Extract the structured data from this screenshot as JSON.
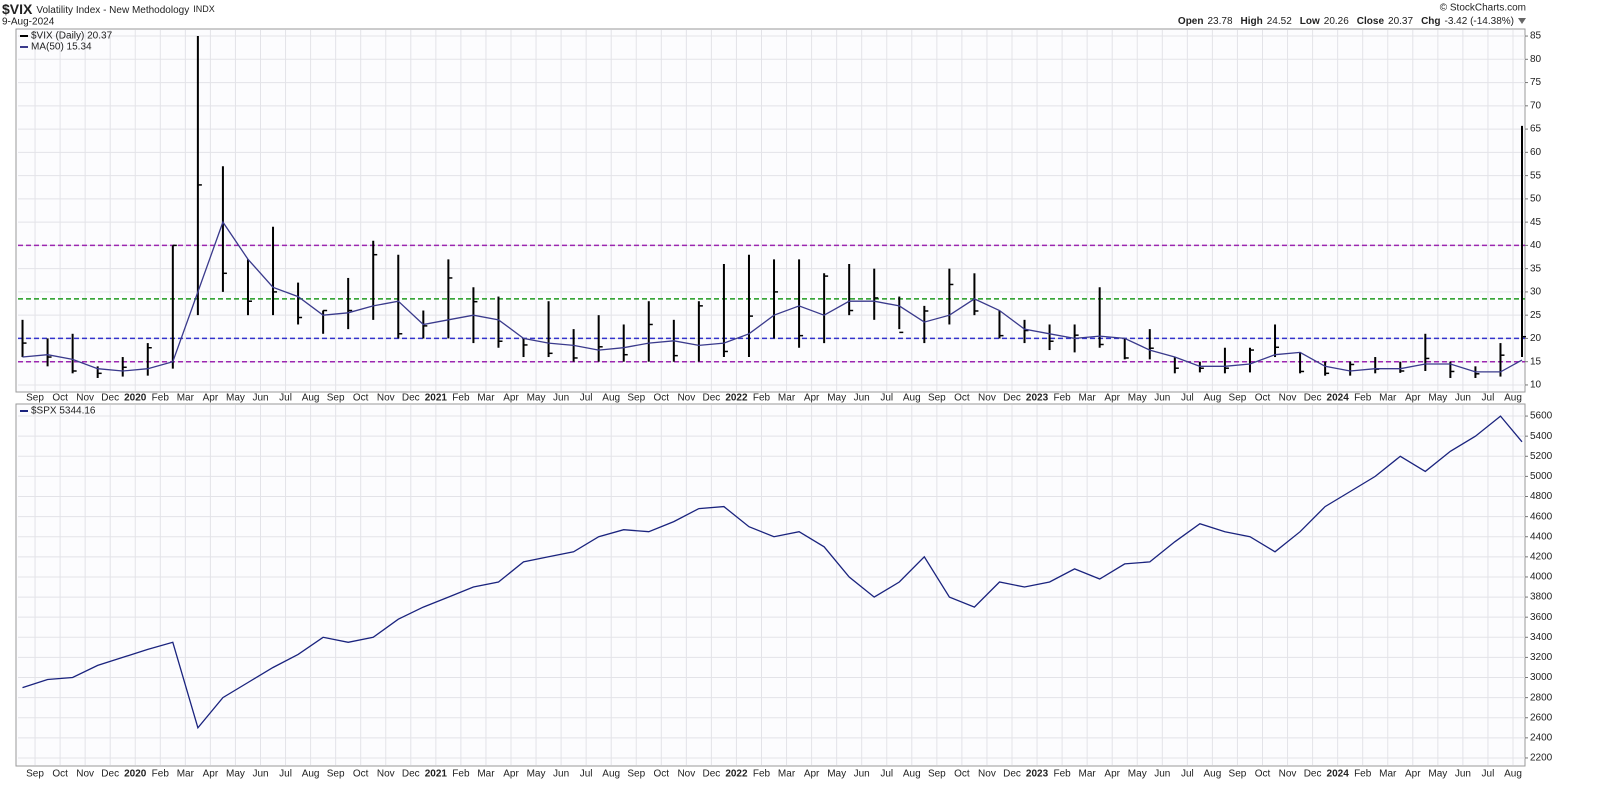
{
  "header": {
    "symbol": "$VIX",
    "name": "Volatility Index - New Methodology",
    "exchange": "INDX",
    "date": "9-Aug-2024",
    "credit": "© StockCharts.com",
    "quote": [
      {
        "label": "Open",
        "value": 23.78
      },
      {
        "label": "High",
        "value": 24.52
      },
      {
        "label": "Low",
        "value": 20.26
      },
      {
        "label": "Close",
        "value": 20.37
      },
      {
        "label": "Chg",
        "value": "-3.42 (-14.38%)"
      }
    ]
  },
  "chart_data": [
    {
      "type": "hlc",
      "categories": [
        null,
        "Sep",
        "Oct",
        "Nov",
        "Dec",
        "2020",
        "Feb",
        "Mar",
        "Apr",
        "May",
        "Jun",
        "Jul",
        "Aug",
        "Sep",
        "Oct",
        "Nov",
        "Dec",
        "2021",
        "Feb",
        "Mar",
        "Apr",
        "May",
        "Jun",
        "Jul",
        "Aug",
        "Sep",
        "Oct",
        "Nov",
        "Dec",
        "2022",
        "Feb",
        "Mar",
        "Apr",
        "May",
        "Jun",
        "Jul",
        "Aug",
        "Sep",
        "Oct",
        "Nov",
        "Dec",
        "2023",
        "Feb",
        "Mar",
        "Apr",
        "May",
        "Jun",
        "Jul",
        "Aug",
        "Sep",
        "Oct",
        "Nov",
        "Dec",
        "2024",
        "Feb",
        "Mar",
        "Apr",
        "May",
        "Jun",
        "Jul",
        "Aug"
      ],
      "series": [
        {
          "name": "$VIX (Daily) 20.37",
          "color": "#000000",
          "values": [
            19,
            16,
            13,
            12.5,
            13.8,
            18,
            40,
            53,
            34,
            28,
            30,
            24.5,
            26,
            26,
            38,
            21,
            22.7,
            33,
            27.9,
            19.4,
            18.6,
            16.8,
            15.8,
            18.2,
            16.5,
            23,
            16.3,
            27,
            17.2,
            24.8,
            30,
            20.6,
            33.4,
            26,
            28.7,
            21.3,
            25.9,
            31.6,
            25.9,
            20.6,
            21.7,
            19.4,
            20.7,
            18.7,
            15.8,
            17.9,
            13.6,
            13.6,
            13.6,
            17.5,
            18.1,
            12.9,
            12.5,
            14.4,
            13.4,
            13,
            15.7,
            12.9,
            12.4,
            16.4,
            20.37
          ],
          "high": [
            24,
            20,
            21,
            14,
            16,
            19,
            40,
            85,
            57,
            37,
            44,
            32,
            26,
            33,
            41,
            38,
            26,
            37,
            31,
            29,
            20,
            28,
            22,
            25,
            23,
            28,
            24,
            28,
            36,
            38,
            37,
            37,
            34,
            36,
            35,
            29,
            27,
            35,
            34,
            26,
            24,
            23,
            23,
            31,
            20,
            22,
            16,
            15,
            18,
            18,
            23,
            17,
            15,
            15,
            16,
            15,
            21,
            15,
            14,
            19,
            65.7
          ],
          "low": [
            16,
            14,
            12.5,
            11.5,
            11.8,
            12,
            13.5,
            25,
            30,
            25,
            25,
            23,
            21,
            22,
            24,
            20,
            20,
            20,
            19,
            18,
            16,
            16,
            15,
            15,
            15,
            15,
            15,
            15,
            16,
            16,
            20,
            18,
            19,
            25,
            24,
            22,
            19,
            23,
            25,
            20,
            19,
            17.5,
            17,
            18,
            15.5,
            15.5,
            12.5,
            12.7,
            12.5,
            12.7,
            16,
            12.5,
            12,
            12,
            12.5,
            12.6,
            13,
            11.5,
            11.5,
            11.8,
            16
          ]
        },
        {
          "name": "MA(50) 15.34",
          "color": "#3a3a8c",
          "values": [
            16,
            16.5,
            15.5,
            13.5,
            13,
            13.5,
            15,
            30,
            45,
            37,
            31,
            29,
            25,
            25.5,
            27,
            28,
            23,
            24,
            25,
            24,
            20,
            19,
            18.5,
            17.5,
            18,
            19,
            19.5,
            18.5,
            19,
            21,
            25,
            27,
            25,
            28,
            28,
            27,
            23.5,
            25,
            28.5,
            26,
            22,
            21,
            20,
            20.5,
            20,
            17.5,
            16,
            14,
            14,
            14.5,
            16.5,
            17,
            14,
            13,
            13.5,
            13.5,
            14.5,
            14.5,
            12.8,
            12.8,
            15.34
          ]
        }
      ],
      "ylim": [
        8.7,
        86.3
      ],
      "yticks": [
        10,
        15,
        20,
        25,
        30,
        35,
        40,
        45,
        50,
        55,
        60,
        65,
        70,
        75,
        80,
        85
      ],
      "grid": true,
      "hlines": [
        {
          "value": 40,
          "color": "#9c27b0"
        },
        {
          "value": 28.5,
          "color": "#1f9a1f"
        },
        {
          "value": 20,
          "color": "#3333cc"
        },
        {
          "value": 15,
          "color": "#9c27b0"
        }
      ]
    },
    {
      "type": "line",
      "categories": [
        null,
        "Sep",
        "Oct",
        "Nov",
        "Dec",
        "2020",
        "Feb",
        "Mar",
        "Apr",
        "May",
        "Jun",
        "Jul",
        "Aug",
        "Sep",
        "Oct",
        "Nov",
        "Dec",
        "2021",
        "Feb",
        "Mar",
        "Apr",
        "May",
        "Jun",
        "Jul",
        "Aug",
        "Sep",
        "Oct",
        "Nov",
        "Dec",
        "2022",
        "Feb",
        "Mar",
        "Apr",
        "May",
        "Jun",
        "Jul",
        "Aug",
        "Sep",
        "Oct",
        "Nov",
        "Dec",
        "2023",
        "Feb",
        "Mar",
        "Apr",
        "May",
        "Jun",
        "Jul",
        "Aug",
        "Sep",
        "Oct",
        "Nov",
        "Dec",
        "2024",
        "Feb",
        "Mar",
        "Apr",
        "May",
        "Jun",
        "Jul",
        "Aug"
      ],
      "series": [
        {
          "name": "$SPX 5344.16",
          "color": "#1a237e",
          "values": [
            2900,
            2980,
            3000,
            3120,
            3200,
            3280,
            3350,
            2500,
            2800,
            2950,
            3100,
            3230,
            3400,
            3350,
            3400,
            3580,
            3700,
            3800,
            3900,
            3950,
            4150,
            4200,
            4250,
            4400,
            4470,
            4450,
            4550,
            4680,
            4700,
            4500,
            4400,
            4450,
            4300,
            4000,
            3800,
            3950,
            4200,
            3800,
            3700,
            3950,
            3900,
            3950,
            4080,
            3980,
            4130,
            4150,
            4350,
            4530,
            4450,
            4400,
            4250,
            4450,
            4700,
            4850,
            5000,
            5200,
            5050,
            5250,
            5400,
            5600,
            5344.16
          ]
        }
      ],
      "ylim": [
        2130,
        5710
      ],
      "yticks": [
        2200,
        2400,
        2600,
        2800,
        3000,
        3200,
        3400,
        3600,
        3800,
        4000,
        4200,
        4400,
        4600,
        4800,
        5000,
        5200,
        5400,
        5600
      ],
      "grid": true
    }
  ]
}
